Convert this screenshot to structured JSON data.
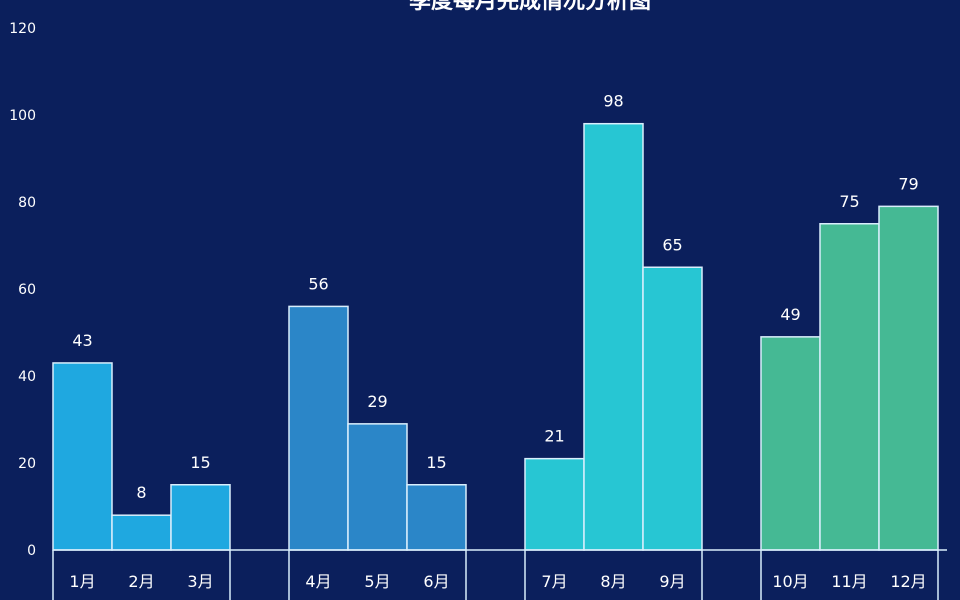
{
  "chart_data": {
    "type": "bar",
    "title": "季度每月完成情况分析图",
    "xlabel": "",
    "ylabel": "",
    "ylim": [
      0,
      120
    ],
    "yticks": [
      0,
      20,
      40,
      60,
      80,
      100,
      120
    ],
    "grid": false,
    "categories": [
      "1月",
      "2月",
      "3月",
      "4月",
      "5月",
      "6月",
      "7月",
      "8月",
      "9月",
      "10月",
      "11月",
      "12月"
    ],
    "values": [
      43,
      8,
      15,
      56,
      29,
      15,
      21,
      98,
      65,
      49,
      75,
      79
    ],
    "groups": [
      {
        "categories": [
          "1月",
          "2月",
          "3月"
        ],
        "color": "#1fa8e0"
      },
      {
        "categories": [
          "4月",
          "5月",
          "6月"
        ],
        "color": "#2b86c8"
      },
      {
        "categories": [
          "7月",
          "8月",
          "9月"
        ],
        "color": "#27c6d3"
      },
      {
        "categories": [
          "10月",
          "11月",
          "12月"
        ],
        "color": "#45b994"
      }
    ]
  },
  "colors": {
    "background": "#0b1f5c",
    "bar_stroke": "#d9eefc",
    "axis": "#d9eefc",
    "text": "#ffffff"
  }
}
